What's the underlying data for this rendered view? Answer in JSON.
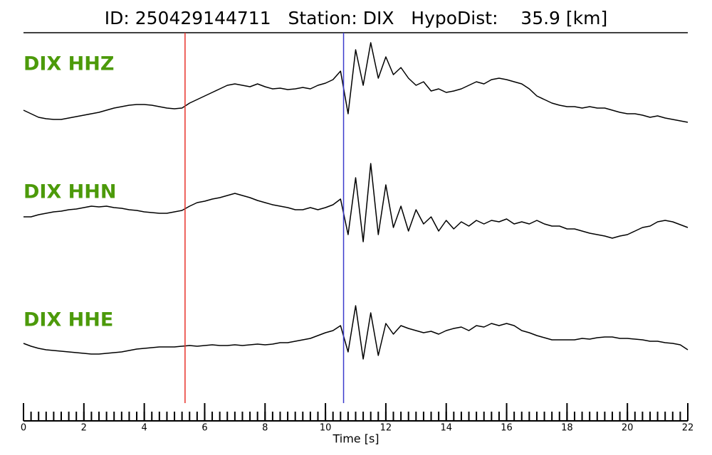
{
  "chart_data": {
    "type": "line",
    "title": "ID: 250429144711   Station: DIX   HypoDist:    35.9 [km]",
    "x_label": "Time [s]",
    "xlim": [
      0,
      22
    ],
    "xticks": [
      0,
      2,
      4,
      6,
      8,
      10,
      12,
      14,
      16,
      18,
      20,
      22
    ],
    "xminor_ticks": [
      0,
      0.25,
      0.5,
      0.75,
      1,
      1.25,
      1.5,
      1.75,
      2,
      2.25,
      2.5,
      2.75,
      3,
      3.25,
      3.5,
      3.75,
      4,
      4.25,
      4.5,
      4.75,
      5,
      5.25,
      5.5,
      5.75,
      6,
      6.25,
      6.5,
      6.75,
      7,
      7.25,
      7.5,
      7.75,
      8,
      8.25,
      8.5,
      8.75,
      9,
      9.25,
      9.5,
      9.75,
      10,
      10.25,
      10.5,
      10.75,
      11,
      11.25,
      11.5,
      11.75,
      12,
      12.25,
      12.5,
      12.75,
      13,
      13.25,
      13.5,
      13.75,
      14,
      14.25,
      14.5,
      14.75,
      15,
      15.25,
      15.5,
      15.75,
      16,
      16.25,
      16.5,
      16.75,
      17,
      17.25,
      17.5,
      17.75,
      18,
      18.25,
      18.5,
      18.75,
      19,
      19.25,
      19.5,
      19.75,
      20,
      20.25,
      20.5,
      20.75,
      21,
      21.25,
      21.5,
      21.75,
      22
    ],
    "ylim": [
      -70,
      70
    ],
    "label_color": "#4c9a0a",
    "line_color": "#000000",
    "markers": [
      {
        "x": 5.35,
        "color": "#e8322a"
      },
      {
        "x": 10.6,
        "color": "#3a3acc"
      }
    ],
    "x": [
      0,
      0.25,
      0.5,
      0.75,
      1,
      1.25,
      1.5,
      1.75,
      2,
      2.25,
      2.5,
      2.75,
      3,
      3.25,
      3.5,
      3.75,
      4,
      4.25,
      4.5,
      4.75,
      5,
      5.25,
      5.5,
      5.75,
      6,
      6.25,
      6.5,
      6.75,
      7,
      7.25,
      7.5,
      7.75,
      8,
      8.25,
      8.5,
      8.75,
      9,
      9.25,
      9.5,
      9.75,
      10,
      10.25,
      10.5,
      10.75,
      11,
      11.25,
      11.5,
      11.75,
      12,
      12.25,
      12.5,
      12.75,
      13,
      13.25,
      13.5,
      13.75,
      14,
      14.25,
      14.5,
      14.75,
      15,
      15.25,
      15.5,
      15.75,
      16,
      16.25,
      16.5,
      16.75,
      17,
      17.25,
      17.5,
      17.75,
      18,
      18.25,
      18.5,
      18.75,
      19,
      19.25,
      19.5,
      19.75,
      20,
      20.25,
      20.5,
      20.75,
      21,
      21.25,
      21.5,
      21.75,
      22
    ],
    "series": [
      {
        "name": "DIX HHZ",
        "values": [
          -45,
          -50,
          -55,
          -57,
          -58,
          -58,
          -56,
          -54,
          -52,
          -50,
          -48,
          -45,
          -42,
          -40,
          -38,
          -37,
          -37,
          -38,
          -40,
          -42,
          -43,
          -42,
          -35,
          -30,
          -25,
          -20,
          -15,
          -10,
          -8,
          -10,
          -12,
          -8,
          -12,
          -15,
          -14,
          -16,
          -15,
          -13,
          -15,
          -10,
          -7,
          -2,
          10,
          -50,
          40,
          -10,
          50,
          0,
          30,
          5,
          15,
          0,
          -10,
          -5,
          -18,
          -15,
          -20,
          -18,
          -15,
          -10,
          -5,
          -8,
          -2,
          0,
          -2,
          -5,
          -8,
          -15,
          -25,
          -30,
          -35,
          -38,
          -40,
          -40,
          -42,
          -40,
          -42,
          -42,
          -45,
          -48,
          -50,
          -50,
          -52,
          -55,
          -53,
          -56,
          -58,
          -60,
          -62
        ]
      },
      {
        "name": "DIX HHN",
        "values": [
          -15,
          -15,
          -12,
          -10,
          -8,
          -7,
          -5,
          -4,
          -2,
          0,
          -1,
          0,
          -2,
          -3,
          -5,
          -6,
          -8,
          -9,
          -10,
          -10,
          -8,
          -6,
          0,
          5,
          7,
          10,
          12,
          15,
          18,
          15,
          12,
          8,
          5,
          2,
          0,
          -2,
          -5,
          -5,
          -2,
          -5,
          -2,
          2,
          10,
          -40,
          40,
          -50,
          60,
          -40,
          30,
          -30,
          0,
          -35,
          -5,
          -25,
          -15,
          -35,
          -20,
          -32,
          -22,
          -28,
          -20,
          -25,
          -20,
          -22,
          -18,
          -25,
          -22,
          -25,
          -20,
          -25,
          -28,
          -28,
          -32,
          -32,
          -35,
          -38,
          -40,
          -42,
          -45,
          -42,
          -40,
          -35,
          -30,
          -28,
          -22,
          -20,
          -22,
          -26,
          -30
        ]
      },
      {
        "name": "DIX HHE",
        "values": [
          -13,
          -17,
          -20,
          -22,
          -23,
          -24,
          -25,
          -26,
          -27,
          -28,
          -28,
          -27,
          -26,
          -25,
          -23,
          -21,
          -20,
          -19,
          -18,
          -18,
          -18,
          -17,
          -16,
          -17,
          -16,
          -15,
          -16,
          -16,
          -15,
          -16,
          -15,
          -14,
          -15,
          -14,
          -12,
          -12,
          -10,
          -8,
          -6,
          -2,
          2,
          5,
          12,
          -25,
          40,
          -35,
          30,
          -30,
          15,
          0,
          12,
          8,
          5,
          2,
          4,
          0,
          5,
          8,
          10,
          5,
          12,
          10,
          15,
          12,
          15,
          12,
          5,
          2,
          -2,
          -5,
          -8,
          -8,
          -8,
          -8,
          -6,
          -7,
          -5,
          -4,
          -4,
          -6,
          -6,
          -7,
          -8,
          -10,
          -10,
          -12,
          -13,
          -15,
          -22
        ]
      }
    ]
  }
}
